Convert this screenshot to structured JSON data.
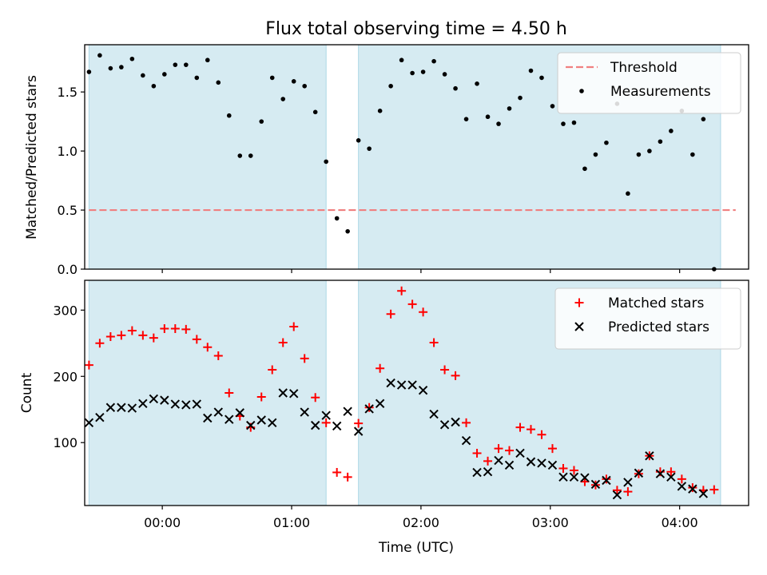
{
  "title": "Flux total observing time = 4.50 h",
  "colors": {
    "shade": "#add8e6",
    "threshold": "#f08080",
    "matched": "#ff0000",
    "predicted": "#000000",
    "measurement": "#000000"
  },
  "chart_data": [
    {
      "type": "scatter",
      "title": "Flux total observing time = 4.50 h",
      "ylabel": "Matched/Predicted stars",
      "xlabel": "",
      "xlim": [
        "-00:36",
        "04:32"
      ],
      "ylim": [
        0,
        1.9
      ],
      "yticks": [
        "0.0",
        "0.5",
        "1.0",
        "1.5"
      ],
      "grid": false,
      "legend_placement": "top-right",
      "shaded_intervals": [
        [
          "-00:34",
          "01:16"
        ],
        [
          "01:31",
          "04:19"
        ]
      ],
      "threshold": {
        "name": "Threshold",
        "value": 0.5,
        "x_range": [
          "-00:34",
          "04:26"
        ]
      },
      "series": [
        {
          "name": "Measurements",
          "points": [
            [
              "-00:34",
              1.67
            ],
            [
              "-00:29",
              1.81
            ],
            [
              "-00:24",
              1.7
            ],
            [
              "-00:19",
              1.71
            ],
            [
              "-00:14",
              1.78
            ],
            [
              "-00:09",
              1.64
            ],
            [
              "-00:04",
              1.55
            ],
            [
              "00:01",
              1.65
            ],
            [
              "00:06",
              1.73
            ],
            [
              "00:11",
              1.73
            ],
            [
              "00:16",
              1.62
            ],
            [
              "00:21",
              1.77
            ],
            [
              "00:26",
              1.58
            ],
            [
              "00:31",
              1.3
            ],
            [
              "00:36",
              0.96
            ],
            [
              "00:41",
              0.96
            ],
            [
              "00:46",
              1.25
            ],
            [
              "00:51",
              1.62
            ],
            [
              "00:56",
              1.44
            ],
            [
              "01:01",
              1.59
            ],
            [
              "01:06",
              1.55
            ],
            [
              "01:11",
              1.33
            ],
            [
              "01:16",
              0.91
            ],
            [
              "01:21",
              0.43
            ],
            [
              "01:26",
              0.32
            ],
            [
              "01:31",
              1.09
            ],
            [
              "01:36",
              1.02
            ],
            [
              "01:41",
              1.34
            ],
            [
              "01:46",
              1.55
            ],
            [
              "01:51",
              1.77
            ],
            [
              "01:56",
              1.66
            ],
            [
              "02:01",
              1.67
            ],
            [
              "02:06",
              1.76
            ],
            [
              "02:11",
              1.65
            ],
            [
              "02:16",
              1.53
            ],
            [
              "02:21",
              1.27
            ],
            [
              "02:26",
              1.57
            ],
            [
              "02:31",
              1.29
            ],
            [
              "02:36",
              1.23
            ],
            [
              "02:41",
              1.36
            ],
            [
              "02:46",
              1.45
            ],
            [
              "02:51",
              1.68
            ],
            [
              "02:56",
              1.62
            ],
            [
              "03:01",
              1.38
            ],
            [
              "03:06",
              1.23
            ],
            [
              "03:11",
              1.24
            ],
            [
              "03:16",
              0.85
            ],
            [
              "03:21",
              0.97
            ],
            [
              "03:26",
              1.07
            ],
            [
              "03:31",
              1.4
            ],
            [
              "03:36",
              0.64
            ],
            [
              "03:41",
              0.97
            ],
            [
              "03:46",
              1.0
            ],
            [
              "03:51",
              1.08
            ],
            [
              "03:56",
              1.17
            ],
            [
              "04:01",
              1.34
            ],
            [
              "04:06",
              0.97
            ],
            [
              "04:11",
              1.27
            ],
            [
              "04:16",
              0.0
            ]
          ]
        }
      ]
    },
    {
      "type": "scatter",
      "title": "",
      "ylabel": "Count",
      "xlabel": "Time (UTC)",
      "xlim": [
        "-00:36",
        "04:32"
      ],
      "ylim": [
        5,
        345
      ],
      "yticks": [
        "100",
        "200",
        "300"
      ],
      "xticks": [
        "00:00",
        "01:00",
        "02:00",
        "03:00",
        "04:00"
      ],
      "grid": false,
      "legend_placement": "top-right",
      "shaded_intervals": [
        [
          "-00:34",
          "01:16"
        ],
        [
          "01:31",
          "04:19"
        ]
      ],
      "series": [
        {
          "name": "Matched stars",
          "points": [
            [
              "-00:34",
              217
            ],
            [
              "-00:29",
              250
            ],
            [
              "-00:24",
              260
            ],
            [
              "-00:19",
              262
            ],
            [
              "-00:14",
              269
            ],
            [
              "-00:09",
              262
            ],
            [
              "-00:04",
              258
            ],
            [
              "00:01",
              272
            ],
            [
              "00:06",
              272
            ],
            [
              "00:11",
              271
            ],
            [
              "00:16",
              256
            ],
            [
              "00:21",
              244
            ],
            [
              "00:26",
              231
            ],
            [
              "00:31",
              175
            ],
            [
              "00:36",
              140
            ],
            [
              "00:41",
              123
            ],
            [
              "00:46",
              169
            ],
            [
              "00:51",
              210
            ],
            [
              "00:56",
              251
            ],
            [
              "01:01",
              275
            ],
            [
              "01:06",
              227
            ],
            [
              "01:11",
              168
            ],
            [
              "01:16",
              130
            ],
            [
              "01:21",
              55
            ],
            [
              "01:26",
              48
            ],
            [
              "01:31",
              129
            ],
            [
              "01:36",
              153
            ],
            [
              "01:41",
              212
            ],
            [
              "01:46",
              294
            ],
            [
              "01:51",
              329
            ],
            [
              "01:56",
              309
            ],
            [
              "02:01",
              297
            ],
            [
              "02:06",
              251
            ],
            [
              "02:11",
              210
            ],
            [
              "02:16",
              201
            ],
            [
              "02:21",
              130
            ],
            [
              "02:26",
              84
            ],
            [
              "02:31",
              72
            ],
            [
              "02:36",
              91
            ],
            [
              "02:41",
              88
            ],
            [
              "02:46",
              123
            ],
            [
              "02:51",
              120
            ],
            [
              "02:56",
              112
            ],
            [
              "03:01",
              91
            ],
            [
              "03:06",
              61
            ],
            [
              "03:11",
              58
            ],
            [
              "03:16",
              41
            ],
            [
              "03:21",
              36
            ],
            [
              "03:26",
              45
            ],
            [
              "03:31",
              28
            ],
            [
              "03:36",
              26
            ],
            [
              "03:41",
              53
            ],
            [
              "03:46",
              80
            ],
            [
              "03:51",
              56
            ],
            [
              "03:56",
              56
            ],
            [
              "04:01",
              45
            ],
            [
              "04:06",
              32
            ],
            [
              "04:11",
              28
            ],
            [
              "04:16",
              29
            ]
          ]
        },
        {
          "name": "Predicted stars",
          "points": [
            [
              "-00:34",
              130
            ],
            [
              "-00:29",
              138
            ],
            [
              "-00:24",
              153
            ],
            [
              "-00:19",
              153
            ],
            [
              "-00:14",
              152
            ],
            [
              "-00:09",
              159
            ],
            [
              "-00:04",
              166
            ],
            [
              "00:01",
              164
            ],
            [
              "00:06",
              158
            ],
            [
              "00:11",
              157
            ],
            [
              "00:16",
              158
            ],
            [
              "00:21",
              137
            ],
            [
              "00:26",
              146
            ],
            [
              "00:31",
              135
            ],
            [
              "00:36",
              145
            ],
            [
              "00:41",
              126
            ],
            [
              "00:46",
              134
            ],
            [
              "00:51",
              130
            ],
            [
              "00:56",
              175
            ],
            [
              "01:01",
              174
            ],
            [
              "01:06",
              146
            ],
            [
              "01:11",
              126
            ],
            [
              "01:16",
              141
            ],
            [
              "01:21",
              125
            ],
            [
              "01:26",
              147
            ],
            [
              "01:31",
              117
            ],
            [
              "01:36",
              151
            ],
            [
              "01:41",
              159
            ],
            [
              "01:46",
              190
            ],
            [
              "01:51",
              187
            ],
            [
              "01:56",
              187
            ],
            [
              "02:01",
              179
            ],
            [
              "02:06",
              143
            ],
            [
              "02:11",
              127
            ],
            [
              "02:16",
              131
            ],
            [
              "02:21",
              103
            ],
            [
              "02:26",
              55
            ],
            [
              "02:31",
              56
            ],
            [
              "02:36",
              73
            ],
            [
              "02:41",
              66
            ],
            [
              "02:46",
              84
            ],
            [
              "02:51",
              71
            ],
            [
              "02:56",
              69
            ],
            [
              "03:01",
              66
            ],
            [
              "03:06",
              48
            ],
            [
              "03:11",
              48
            ],
            [
              "03:16",
              47
            ],
            [
              "03:21",
              37
            ],
            [
              "03:26",
              43
            ],
            [
              "03:31",
              21
            ],
            [
              "03:36",
              40
            ],
            [
              "03:41",
              54
            ],
            [
              "03:46",
              80
            ],
            [
              "03:51",
              53
            ],
            [
              "03:56",
              48
            ],
            [
              "04:01",
              34
            ],
            [
              "04:06",
              30
            ],
            [
              "04:11",
              23
            ]
          ]
        }
      ]
    }
  ]
}
